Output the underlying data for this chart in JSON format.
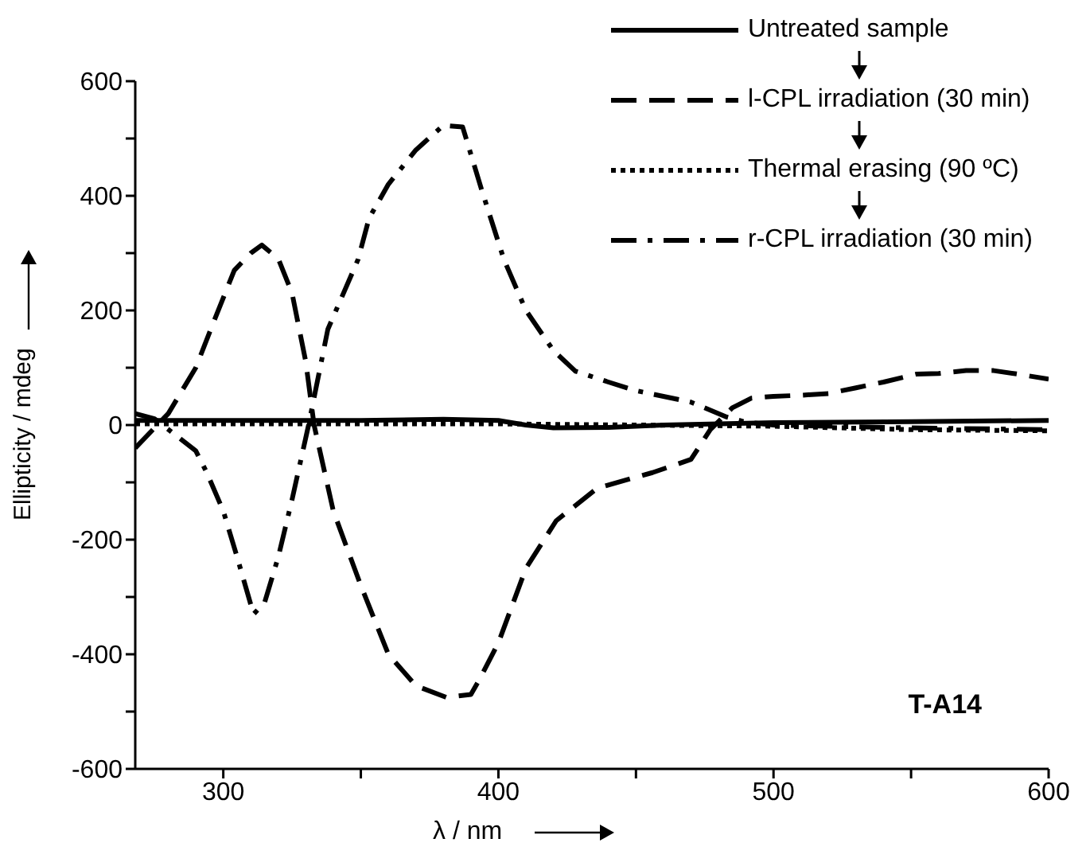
{
  "chart_data": {
    "type": "line",
    "xlabel": "λ / nm",
    "ylabel": "Ellipticity / mdeg",
    "annotations": [
      "T-A14"
    ],
    "xlim": [
      268,
      600
    ],
    "xticks": [
      300,
      {
        "value": 350,
        "label": null
      },
      400,
      {
        "value": 450,
        "label": null
      },
      500,
      {
        "value": 550,
        "label": null
      },
      600
    ],
    "ylim": [
      -600,
      600
    ],
    "yticks": [
      -600,
      {
        "value": -500,
        "label": null
      },
      -400,
      {
        "value": -300,
        "label": null
      },
      -200,
      {
        "value": -100,
        "label": null
      },
      0,
      {
        "value": 100,
        "label": null
      },
      200,
      {
        "value": 300,
        "label": null
      },
      400,
      {
        "value": 500,
        "label": null
      },
      600
    ],
    "legend": "top right",
    "marker": "none",
    "series": [
      {
        "name": "Untreated sample",
        "color": "#000000",
        "line_style": "solid",
        "x": [
          268,
          300,
          350,
          380,
          400,
          410,
          420,
          440,
          460,
          500,
          550,
          600
        ],
        "values": [
          8,
          8,
          8,
          10,
          8,
          0,
          -5,
          -4,
          0,
          4,
          6,
          8
        ]
      },
      {
        "name": "l-CPL irradiation (30 min)",
        "color": "#000000",
        "line_style": "dashed",
        "x": [
          268,
          280,
          290,
          297,
          304,
          310,
          314,
          320,
          325,
          330,
          333,
          340,
          350,
          360,
          370,
          381,
          390,
          393,
          400,
          410,
          421,
          436,
          456,
          470,
          477,
          485,
          492,
          500,
          510,
          520,
          530,
          540,
          552,
          560,
          570,
          580,
          590,
          600
        ],
        "values": [
          -40,
          20,
          100,
          186,
          270,
          300,
          314,
          290,
          230,
          110,
          0,
          -150,
          -280,
          -400,
          -455,
          -475,
          -470,
          -445,
          -380,
          -250,
          -167,
          -110,
          -83,
          -60,
          -8,
          30,
          47,
          50,
          52,
          55,
          65,
          75,
          89,
          90,
          95,
          95,
          88,
          80
        ]
      },
      {
        "name": "Thermal erasing (90 ºC)",
        "color": "#000000",
        "line_style": "dotted",
        "x": [
          268,
          300,
          350,
          400,
          450,
          500,
          550,
          600
        ],
        "values": [
          2,
          2,
          2,
          2,
          0,
          -2,
          -8,
          -10
        ]
      },
      {
        "name": "r-CPL irradiation (30 min)",
        "color": "#000000",
        "line_style": "dashdot",
        "x": [
          268,
          275,
          290,
          294,
          300,
          305,
          311,
          315,
          320,
          325,
          331,
          338,
          349,
          353,
          360,
          370,
          380,
          387,
          394,
          402,
          410,
          420,
          428,
          440,
          450,
          460,
          470,
          483,
          490,
          500,
          550,
          600
        ],
        "values": [
          20,
          11,
          -45,
          -83,
          -150,
          -230,
          -330,
          -310,
          -230,
          -130,
          0,
          167,
          289,
          361,
          420,
          480,
          523,
          520,
          409,
          289,
          200,
          130,
          94,
          75,
          60,
          50,
          40,
          14,
          5,
          0,
          -5,
          -8
        ]
      }
    ]
  }
}
